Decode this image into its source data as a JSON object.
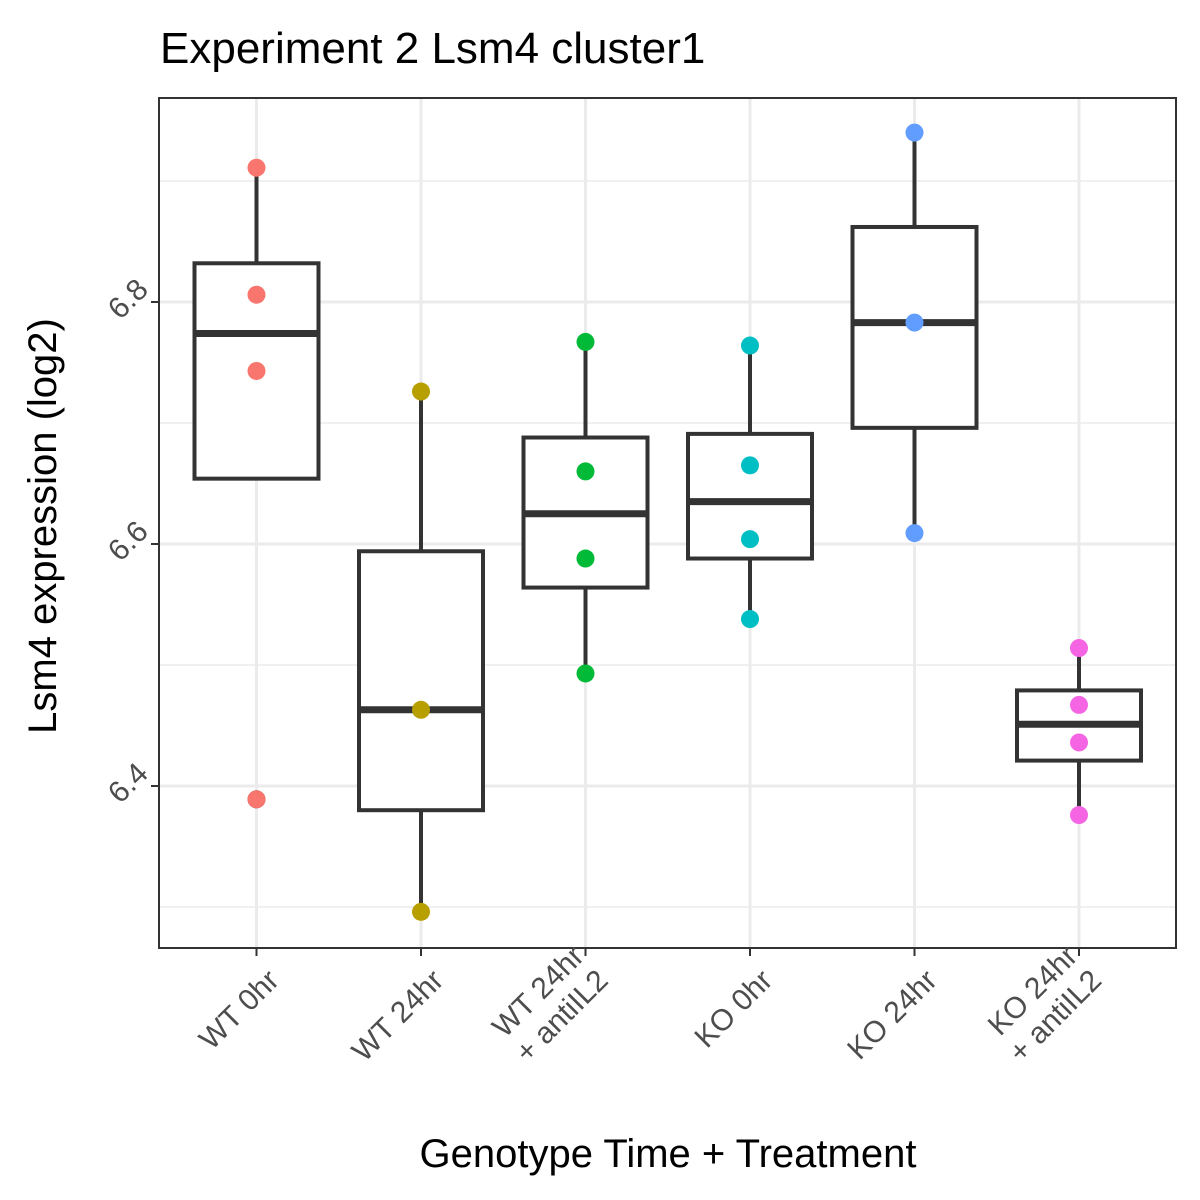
{
  "chart_data": {
    "type": "boxplot",
    "title": "Experiment 2 Lsm4 cluster1",
    "xlabel": "Genotype Time + Treatment",
    "ylabel": "Lsm4 expression (log2)",
    "ylim": [
      6.265,
      6.97
    ],
    "yticks": [
      "6.4",
      "6.6",
      "6.8"
    ],
    "grid": true,
    "categories": [
      {
        "label_lines": [
          "WT 0hr"
        ],
        "color": "#F8766D",
        "box": {
          "q1": 6.654,
          "median": 6.774,
          "q3": 6.832,
          "whisker_low": 6.654,
          "whisker_high": 6.911
        },
        "points": [
          6.911,
          6.806,
          6.743,
          6.389
        ],
        "outliers": [
          6.389
        ]
      },
      {
        "label_lines": [
          "WT 24hr"
        ],
        "color": "#B79F00",
        "box": {
          "q1": 6.38,
          "median": 6.463,
          "q3": 6.594,
          "whisker_low": 6.296,
          "whisker_high": 6.726
        },
        "points": [
          6.726,
          6.463,
          6.296
        ],
        "outliers": []
      },
      {
        "label_lines": [
          "WT 24hr",
          "+ antiIL2"
        ],
        "color": "#00BA38",
        "box": {
          "q1": 6.564,
          "median": 6.625,
          "q3": 6.688,
          "whisker_low": 6.493,
          "whisker_high": 6.767
        },
        "points": [
          6.767,
          6.66,
          6.588,
          6.493
        ],
        "outliers": []
      },
      {
        "label_lines": [
          "KO 0hr"
        ],
        "color": "#00BFC4",
        "box": {
          "q1": 6.588,
          "median": 6.635,
          "q3": 6.691,
          "whisker_low": 6.538,
          "whisker_high": 6.764
        },
        "points": [
          6.764,
          6.665,
          6.604,
          6.538
        ],
        "outliers": []
      },
      {
        "label_lines": [
          "KO 24hr"
        ],
        "color": "#619CFF",
        "box": {
          "q1": 6.696,
          "median": 6.783,
          "q3": 6.862,
          "whisker_low": 6.609,
          "whisker_high": 6.94
        },
        "points": [
          6.94,
          6.783,
          6.609
        ],
        "outliers": []
      },
      {
        "label_lines": [
          "KO 24hr",
          "+ antiIL2"
        ],
        "color": "#F564E3",
        "box": {
          "q1": 6.421,
          "median": 6.451,
          "q3": 6.479,
          "whisker_low": 6.376,
          "whisker_high": 6.514
        },
        "points": [
          6.514,
          6.467,
          6.436,
          6.376
        ],
        "outliers": []
      }
    ]
  }
}
